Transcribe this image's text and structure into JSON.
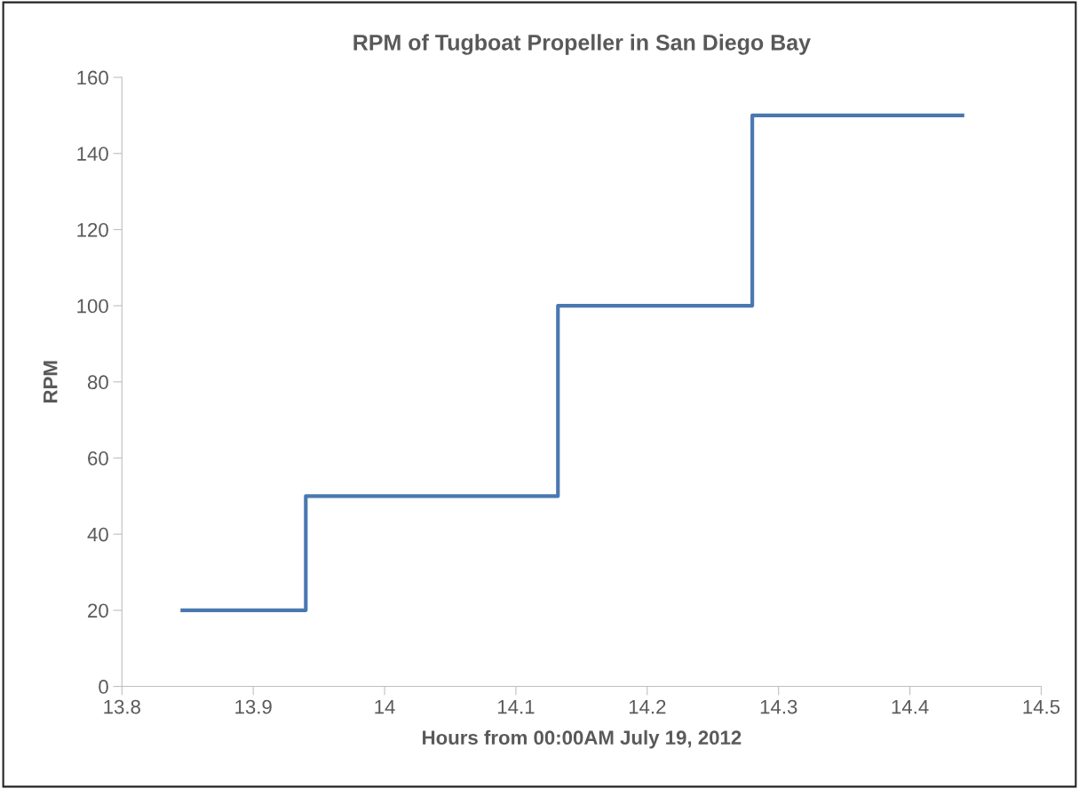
{
  "chart_data": {
    "type": "step",
    "title": "RPM of Tugboat Propeller in San Diego Bay",
    "xlabel": "Hours from 00:00AM July 19, 2012",
    "ylabel": "RPM",
    "x": [
      13.846,
      13.94,
      14.132,
      14.28,
      14.44
    ],
    "series": [
      {
        "color": "#4a78b0",
        "values": [
          20,
          50,
          100,
          150,
          150
        ]
      }
    ],
    "xlim": [
      13.8,
      14.5
    ],
    "xticks": [
      13.8,
      13.9,
      14,
      14.1,
      14.2,
      14.3,
      14.4,
      14.5
    ],
    "ylim": [
      0,
      160
    ],
    "yticks": [
      0,
      20,
      40,
      60,
      80,
      100,
      120,
      140,
      160
    ],
    "grid": false
  }
}
